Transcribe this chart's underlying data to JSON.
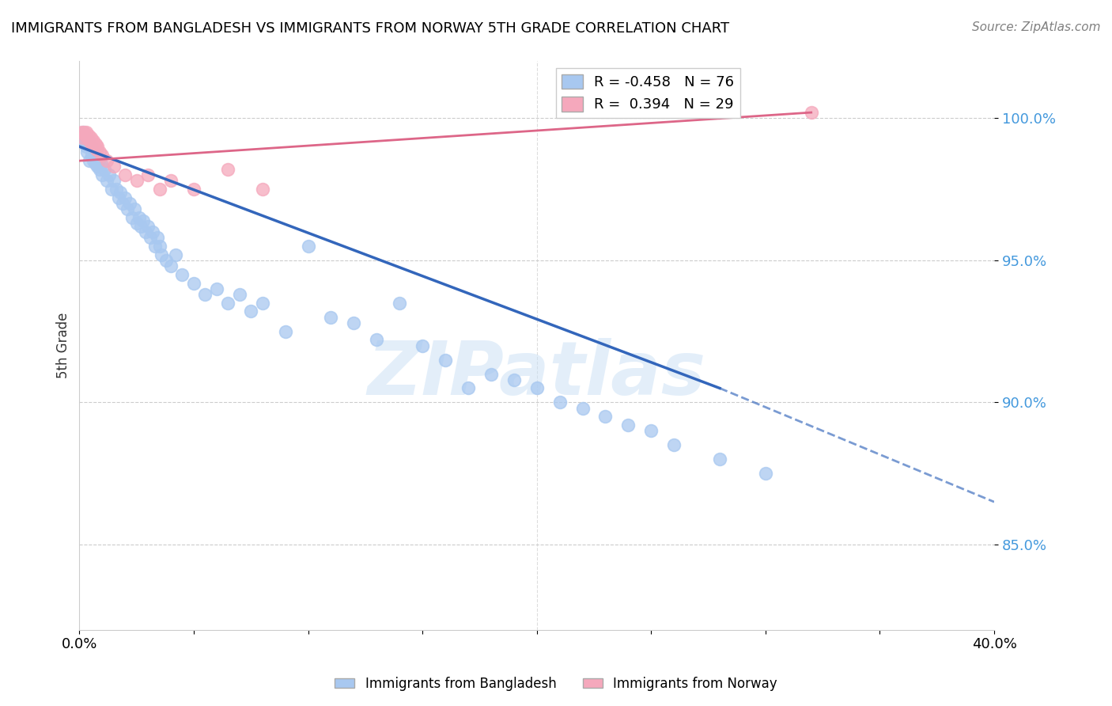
{
  "title": "IMMIGRANTS FROM BANGLADESH VS IMMIGRANTS FROM NORWAY 5TH GRADE CORRELATION CHART",
  "source": "Source: ZipAtlas.com",
  "ylabel": "5th Grade",
  "xlabel": "",
  "xlim_pct": [
    0.0,
    40.0
  ],
  "ylim": [
    82.0,
    102.0
  ],
  "yticks": [
    85.0,
    90.0,
    95.0,
    100.0
  ],
  "xticks": [
    0.0,
    5.0,
    10.0,
    15.0,
    20.0,
    25.0,
    30.0,
    35.0,
    40.0
  ],
  "blue_R": -0.458,
  "blue_N": 76,
  "pink_R": 0.394,
  "pink_N": 29,
  "blue_color": "#a8c8f0",
  "pink_color": "#f5a8bc",
  "blue_line_color": "#3366bb",
  "pink_line_color": "#dd6688",
  "watermark": "ZIPatlas",
  "blue_scatter_x": [
    0.1,
    0.15,
    0.2,
    0.25,
    0.3,
    0.35,
    0.4,
    0.45,
    0.5,
    0.55,
    0.6,
    0.65,
    0.7,
    0.75,
    0.8,
    0.85,
    0.9,
    0.95,
    1.0,
    1.1,
    1.2,
    1.3,
    1.4,
    1.5,
    1.6,
    1.7,
    1.8,
    1.9,
    2.0,
    2.1,
    2.2,
    2.3,
    2.4,
    2.5,
    2.6,
    2.7,
    2.8,
    2.9,
    3.0,
    3.1,
    3.2,
    3.3,
    3.4,
    3.5,
    3.6,
    3.8,
    4.0,
    4.2,
    4.5,
    5.0,
    5.5,
    6.0,
    6.5,
    7.0,
    7.5,
    8.0,
    9.0,
    10.0,
    11.0,
    12.0,
    13.0,
    14.0,
    15.0,
    16.0,
    17.0,
    18.0,
    19.0,
    20.0,
    21.0,
    22.0,
    23.0,
    24.0,
    25.0,
    26.0,
    28.0,
    30.0
  ],
  "blue_scatter_y": [
    99.2,
    99.5,
    99.3,
    99.1,
    99.0,
    98.8,
    99.2,
    98.5,
    99.0,
    98.7,
    98.5,
    98.8,
    98.4,
    98.6,
    98.3,
    98.5,
    98.2,
    98.4,
    98.0,
    98.2,
    97.8,
    98.0,
    97.5,
    97.8,
    97.5,
    97.2,
    97.4,
    97.0,
    97.2,
    96.8,
    97.0,
    96.5,
    96.8,
    96.3,
    96.5,
    96.2,
    96.4,
    96.0,
    96.2,
    95.8,
    96.0,
    95.5,
    95.8,
    95.5,
    95.2,
    95.0,
    94.8,
    95.2,
    94.5,
    94.2,
    93.8,
    94.0,
    93.5,
    93.8,
    93.2,
    93.5,
    92.5,
    95.5,
    93.0,
    92.8,
    92.2,
    93.5,
    92.0,
    91.5,
    90.5,
    91.0,
    90.8,
    90.5,
    90.0,
    89.8,
    89.5,
    89.2,
    89.0,
    88.5,
    88.0,
    87.5
  ],
  "pink_scatter_x": [
    0.1,
    0.15,
    0.2,
    0.25,
    0.3,
    0.35,
    0.4,
    0.45,
    0.5,
    0.55,
    0.6,
    0.65,
    0.7,
    0.75,
    0.8,
    0.9,
    1.0,
    1.2,
    1.5,
    2.0,
    2.5,
    3.0,
    3.5,
    4.0,
    5.0,
    6.5,
    8.0,
    28.0,
    32.0
  ],
  "pink_scatter_y": [
    99.5,
    99.3,
    99.5,
    99.4,
    99.5,
    99.3,
    99.4,
    99.2,
    99.3,
    99.1,
    99.2,
    99.0,
    99.1,
    98.9,
    99.0,
    98.8,
    98.7,
    98.5,
    98.3,
    98.0,
    97.8,
    98.0,
    97.5,
    97.8,
    97.5,
    98.2,
    97.5,
    100.2,
    100.2
  ],
  "blue_line_x0": 0.0,
  "blue_line_y0": 99.0,
  "blue_line_x1": 28.0,
  "blue_line_y1": 90.5,
  "blue_dash_x0": 28.0,
  "blue_dash_y0": 90.5,
  "blue_dash_x1": 40.0,
  "blue_dash_y1": 86.5,
  "pink_line_x0": 0.0,
  "pink_line_y0": 98.5,
  "pink_line_x1": 32.0,
  "pink_line_y1": 100.2
}
